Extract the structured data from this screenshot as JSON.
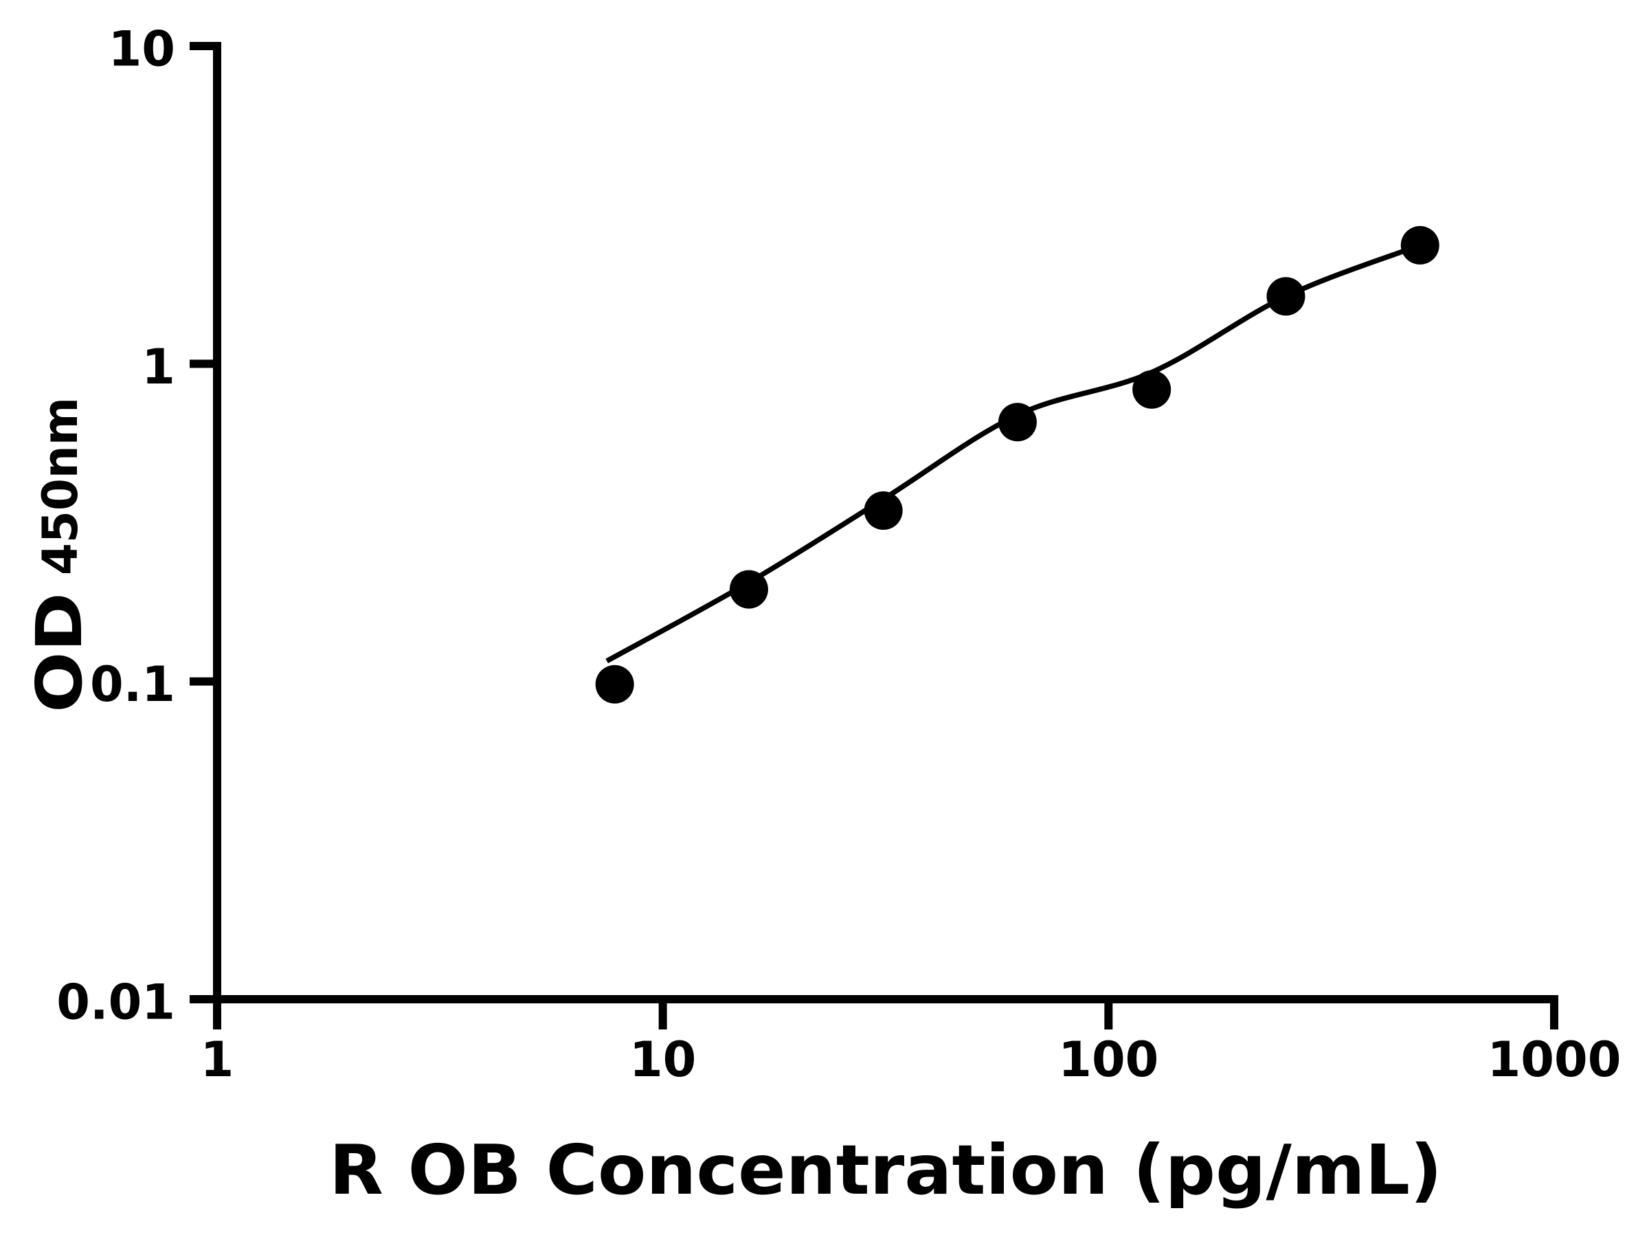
{
  "page": {
    "background": "#ffffff",
    "foreground": "#000000"
  },
  "chart_data": {
    "type": "scatter",
    "title": "",
    "xlabel": "R OB Concentration (pg/mL)",
    "ylabel_main": "OD",
    "ylabel_sub": "450nm",
    "x_scale": "log",
    "y_scale": "log",
    "xlim": [
      1,
      1000
    ],
    "ylim": [
      0.01,
      10
    ],
    "x_ticks": {
      "values": [
        1,
        10,
        100,
        1000
      ],
      "labels": [
        "1",
        "10",
        "100",
        "1000"
      ]
    },
    "y_ticks": {
      "values": [
        0.01,
        0.1,
        1,
        10
      ],
      "labels": [
        "0.01",
        "0.1",
        "1",
        "10"
      ]
    },
    "grid": "off",
    "legend": "none",
    "series": [
      {
        "name": "standard-curve-points",
        "marker": "filled-circle",
        "color": "#000000",
        "x": [
          7.8,
          15.6,
          31.25,
          62.5,
          125,
          250,
          500
        ],
        "y": [
          0.098,
          0.195,
          0.345,
          0.655,
          0.83,
          1.63,
          2.36
        ]
      }
    ],
    "fit_curve": {
      "name": "4pl-fit-line",
      "color": "#000000",
      "points": [
        [
          7.49,
          0.116
        ],
        [
          15.6,
          0.205
        ],
        [
          31.25,
          0.375
        ],
        [
          62.5,
          0.69
        ],
        [
          125,
          0.94
        ],
        [
          250,
          1.63
        ],
        [
          500,
          2.36
        ]
      ]
    }
  }
}
